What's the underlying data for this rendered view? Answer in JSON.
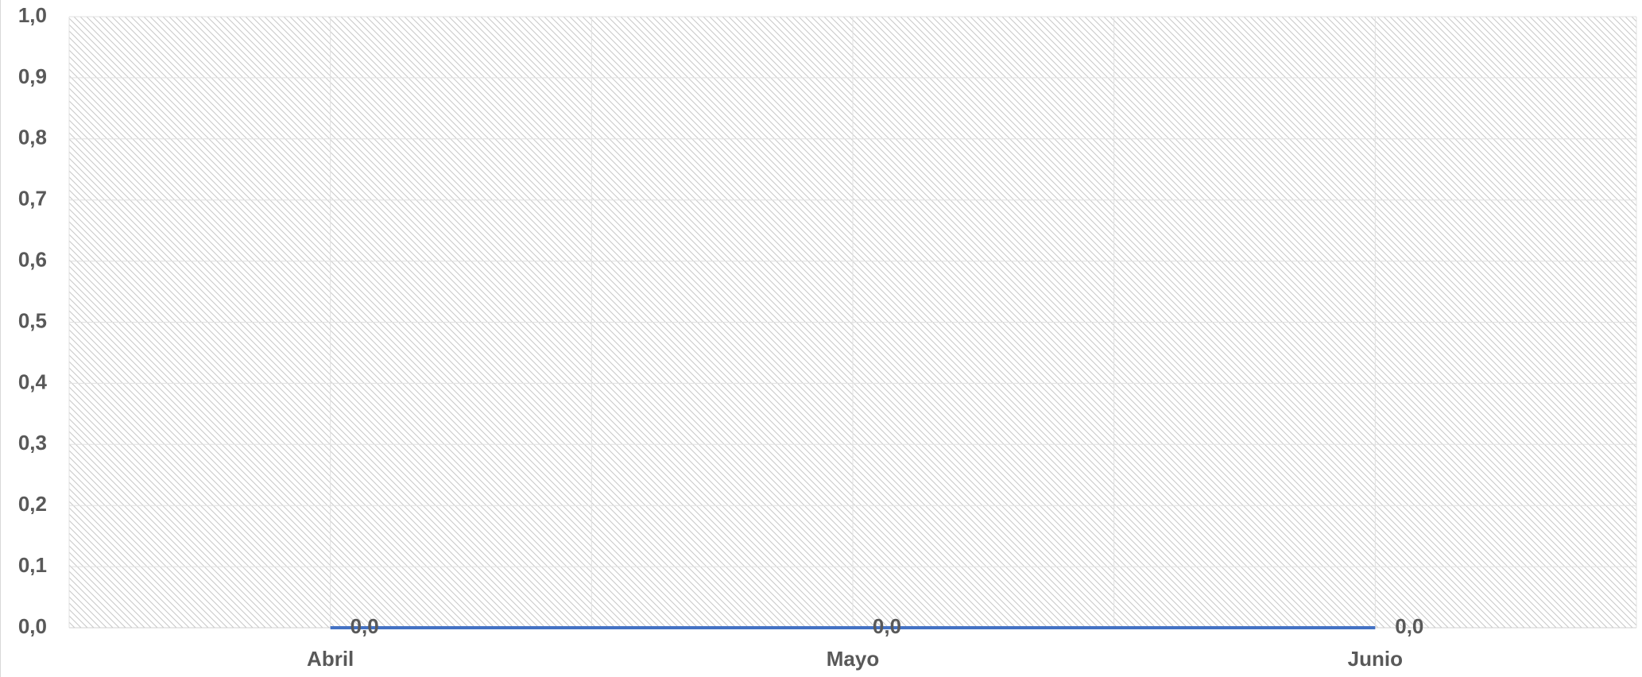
{
  "chart_data": {
    "type": "line",
    "categories": [
      "Abril",
      "Mayo",
      "Junio"
    ],
    "series": [
      {
        "color": "#4472c4",
        "values": [
          0,
          0,
          0
        ],
        "value_labels": [
          "0,0",
          "0,0",
          "0,0"
        ]
      }
    ],
    "ylim": [
      0,
      1
    ],
    "yticks": [
      {
        "value": 0,
        "label": "0,0"
      },
      {
        "value": 0.1,
        "label": "0,1"
      },
      {
        "value": 0.2,
        "label": "0,2"
      },
      {
        "value": 0.3,
        "label": "0,3"
      },
      {
        "value": 0.4,
        "label": "0,4"
      },
      {
        "value": 0.5,
        "label": "0,5"
      },
      {
        "value": 0.6,
        "label": "0,6"
      },
      {
        "value": 0.7,
        "label": "0,7"
      },
      {
        "value": 0.8,
        "label": "0,8"
      },
      {
        "value": 0.9,
        "label": "0,9"
      },
      {
        "value": 1,
        "label": "1,0"
      }
    ],
    "grid": true
  }
}
